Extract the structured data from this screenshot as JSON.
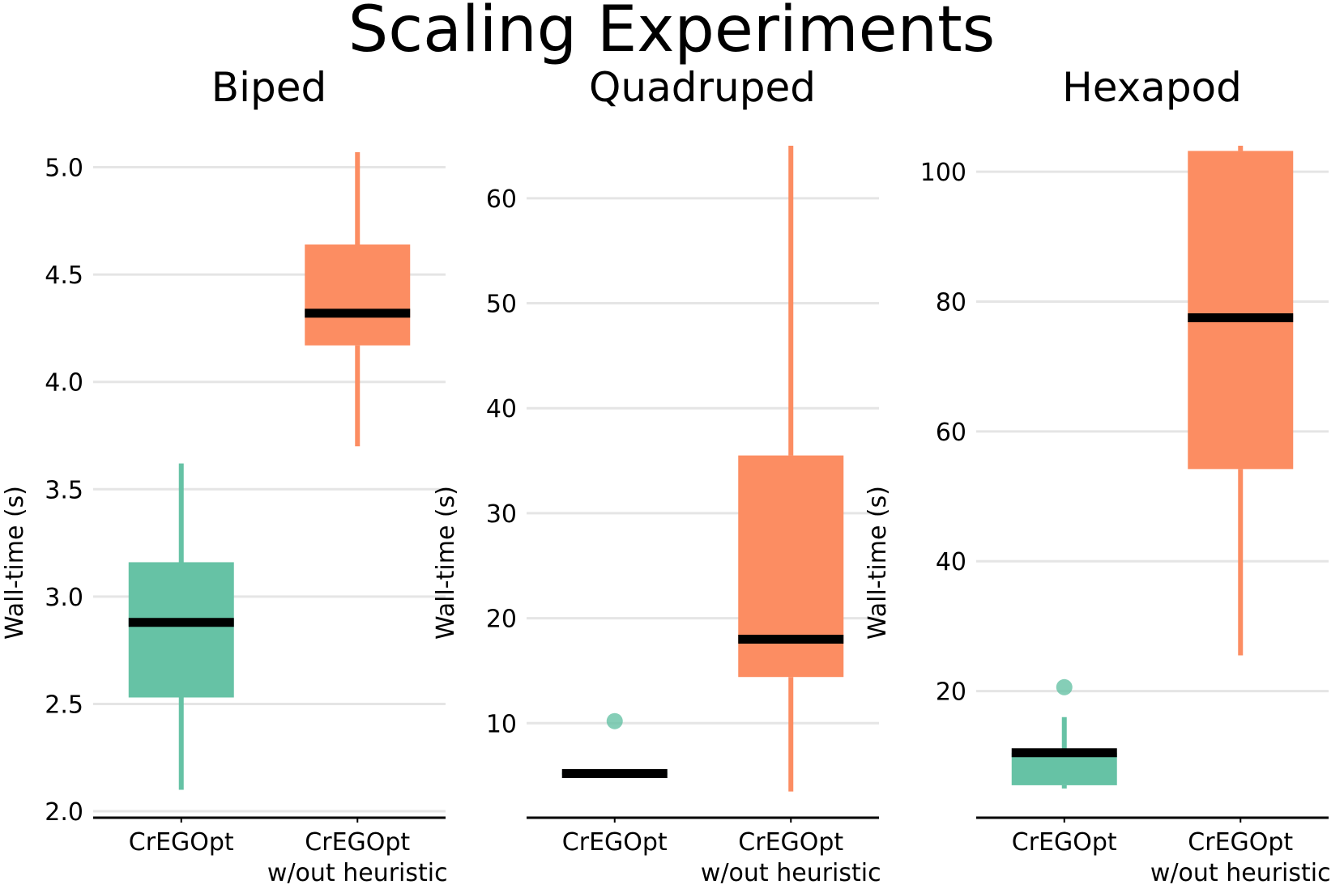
{
  "title": "Scaling Experiments",
  "colors": {
    "proposed": "#66c2a5",
    "baseline": "#fc8d62",
    "median": "#000000",
    "grid": "#e5e5e5",
    "axis": "#000000"
  },
  "chart_data": [
    {
      "type": "box",
      "title": "Biped",
      "ylabel": "Wall-time (s)",
      "ylim": [
        1.97,
        5.1
      ],
      "yticks": [
        2.0,
        2.5,
        3.0,
        3.5,
        4.0,
        4.5,
        5.0
      ],
      "ytick_labels": [
        "2.0",
        "2.5",
        "3.0",
        "3.5",
        "4.0",
        "4.5",
        "5.0"
      ],
      "grid": true,
      "categories": [
        "CrEGOpt",
        "CrEGOpt w/out heuristic"
      ],
      "category_lines": [
        [
          "CrEGOpt"
        ],
        [
          "CrEGOpt",
          "w/out heuristic"
        ]
      ],
      "series": [
        {
          "name": "CrEGOpt",
          "color": "#66c2a5",
          "whisker_low": 2.1,
          "q1": 2.53,
          "median": 2.88,
          "q3": 3.16,
          "whisker_high": 3.62,
          "outliers": []
        },
        {
          "name": "CrEGOpt w/out heuristic",
          "color": "#fc8d62",
          "whisker_low": 3.7,
          "q1": 4.17,
          "median": 4.32,
          "q3": 4.64,
          "whisker_high": 5.07,
          "outliers": []
        }
      ]
    },
    {
      "type": "box",
      "title": "Quadruped",
      "ylabel": "Wall-time (s)",
      "ylim": [
        1,
        65
      ],
      "yticks": [
        10,
        20,
        30,
        40,
        50,
        60
      ],
      "ytick_labels": [
        "10",
        "20",
        "30",
        "40",
        "50",
        "60"
      ],
      "grid": true,
      "categories": [
        "CrEGOpt",
        "CrEGOpt w/out heuristic"
      ],
      "category_lines": [
        [
          "CrEGOpt"
        ],
        [
          "CrEGOpt",
          "w/out heuristic"
        ]
      ],
      "series": [
        {
          "name": "CrEGOpt",
          "color": "#66c2a5",
          "whisker_low": 5.1,
          "q1": 5.1,
          "median": 5.2,
          "q3": 5.3,
          "whisker_high": 5.3,
          "outliers": [
            10.2
          ]
        },
        {
          "name": "CrEGOpt w/out heuristic",
          "color": "#fc8d62",
          "whisker_low": 3.5,
          "q1": 14.4,
          "median": 18.0,
          "q3": 35.5,
          "whisker_high": 65,
          "outliers": []
        }
      ]
    },
    {
      "type": "box",
      "title": "Hexapod",
      "ylabel": "Wall-time (s)",
      "ylim": [
        0.5,
        104
      ],
      "yticks": [
        20,
        40,
        60,
        80,
        100
      ],
      "ytick_labels": [
        "20",
        "40",
        "60",
        "80",
        "100"
      ],
      "grid": true,
      "categories": [
        "CrEGOpt",
        "CrEGOpt w/out heuristic"
      ],
      "category_lines": [
        [
          "CrEGOpt"
        ],
        [
          "CrEGOpt",
          "w/out heuristic"
        ]
      ],
      "series": [
        {
          "name": "CrEGOpt",
          "color": "#66c2a5",
          "whisker_low": 5,
          "q1": 5.5,
          "median": 10.5,
          "q3": 10.5,
          "whisker_high": 16,
          "outliers": [
            20.6
          ]
        },
        {
          "name": "CrEGOpt w/out heuristic",
          "color": "#fc8d62",
          "whisker_low": 25.5,
          "q1": 54.2,
          "median": 77.5,
          "q3": 103.2,
          "whisker_high": 104,
          "outliers": []
        }
      ]
    }
  ]
}
